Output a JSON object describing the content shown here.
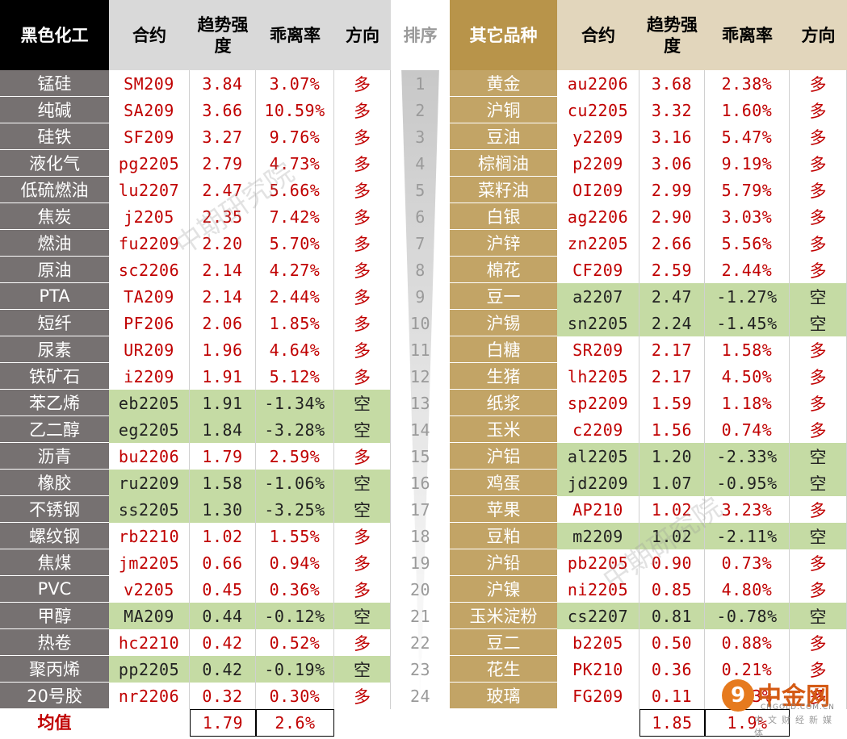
{
  "left_headers": {
    "name": "黑色化工",
    "contract": "合约",
    "strength": "趋势强度",
    "deviation": "乖离率",
    "direction": "方向"
  },
  "rank_header": "排序",
  "right_headers": {
    "name": "其它品种",
    "contract": "合约",
    "strength": "趋势强度",
    "deviation": "乖离率",
    "direction": "方向"
  },
  "left_rows": [
    {
      "name": "锰硅",
      "contract": "SM209",
      "strength": "3.84",
      "deviation": "3.07%",
      "direction": "多"
    },
    {
      "name": "纯碱",
      "contract": "SA209",
      "strength": "3.66",
      "deviation": "10.59%",
      "direction": "多"
    },
    {
      "name": "硅铁",
      "contract": "SF209",
      "strength": "3.27",
      "deviation": "9.76%",
      "direction": "多"
    },
    {
      "name": "液化气",
      "contract": "pg2205",
      "strength": "2.79",
      "deviation": "4.73%",
      "direction": "多"
    },
    {
      "name": "低硫燃油",
      "contract": "lu2207",
      "strength": "2.47",
      "deviation": "5.66%",
      "direction": "多"
    },
    {
      "name": "焦炭",
      "contract": "j2205",
      "strength": "2.35",
      "deviation": "7.42%",
      "direction": "多"
    },
    {
      "name": "燃油",
      "contract": "fu2209",
      "strength": "2.20",
      "deviation": "5.70%",
      "direction": "多"
    },
    {
      "name": "原油",
      "contract": "sc2206",
      "strength": "2.14",
      "deviation": "4.27%",
      "direction": "多"
    },
    {
      "name": "PTA",
      "contract": "TA209",
      "strength": "2.14",
      "deviation": "2.44%",
      "direction": "多"
    },
    {
      "name": "短纤",
      "contract": "PF206",
      "strength": "2.06",
      "deviation": "1.85%",
      "direction": "多"
    },
    {
      "name": "尿素",
      "contract": "UR209",
      "strength": "1.96",
      "deviation": "4.64%",
      "direction": "多"
    },
    {
      "name": "铁矿石",
      "contract": "i2209",
      "strength": "1.91",
      "deviation": "5.12%",
      "direction": "多"
    },
    {
      "name": "苯乙烯",
      "contract": "eb2205",
      "strength": "1.91",
      "deviation": "-1.34%",
      "direction": "空"
    },
    {
      "name": "乙二醇",
      "contract": "eg2205",
      "strength": "1.84",
      "deviation": "-3.28%",
      "direction": "空"
    },
    {
      "name": "沥青",
      "contract": "bu2206",
      "strength": "1.79",
      "deviation": "2.59%",
      "direction": "多"
    },
    {
      "name": "橡胶",
      "contract": "ru2209",
      "strength": "1.58",
      "deviation": "-1.06%",
      "direction": "空"
    },
    {
      "name": "不锈钢",
      "contract": "ss2205",
      "strength": "1.30",
      "deviation": "-3.25%",
      "direction": "空"
    },
    {
      "name": "螺纹钢",
      "contract": "rb2210",
      "strength": "1.02",
      "deviation": "1.55%",
      "direction": "多"
    },
    {
      "name": "焦煤",
      "contract": "jm2205",
      "strength": "0.66",
      "deviation": "0.94%",
      "direction": "多"
    },
    {
      "name": "PVC",
      "contract": "v2205",
      "strength": "0.45",
      "deviation": "0.36%",
      "direction": "多"
    },
    {
      "name": "甲醇",
      "contract": "MA209",
      "strength": "0.44",
      "deviation": "-0.12%",
      "direction": "空"
    },
    {
      "name": "热卷",
      "contract": "hc2210",
      "strength": "0.42",
      "deviation": "0.52%",
      "direction": "多"
    },
    {
      "name": "聚丙烯",
      "contract": "pp2205",
      "strength": "0.42",
      "deviation": "-0.19%",
      "direction": "空"
    },
    {
      "name": "20号胶",
      "contract": "nr2206",
      "strength": "0.32",
      "deviation": "0.30%",
      "direction": "多"
    }
  ],
  "ranks": [
    "1",
    "2",
    "3",
    "4",
    "5",
    "6",
    "7",
    "8",
    "9",
    "10",
    "11",
    "12",
    "13",
    "14",
    "15",
    "16",
    "17",
    "18",
    "19",
    "20",
    "21",
    "22",
    "23",
    "24"
  ],
  "right_rows": [
    {
      "name": "黄金",
      "contract": "au2206",
      "strength": "3.68",
      "deviation": "2.38%",
      "direction": "多"
    },
    {
      "name": "沪铜",
      "contract": "cu2205",
      "strength": "3.32",
      "deviation": "1.60%",
      "direction": "多"
    },
    {
      "name": "豆油",
      "contract": "y2209",
      "strength": "3.16",
      "deviation": "5.47%",
      "direction": "多"
    },
    {
      "name": "棕榈油",
      "contract": "p2209",
      "strength": "3.06",
      "deviation": "9.19%",
      "direction": "多"
    },
    {
      "name": "菜籽油",
      "contract": "OI209",
      "strength": "2.99",
      "deviation": "5.79%",
      "direction": "多"
    },
    {
      "name": "白银",
      "contract": "ag2206",
      "strength": "2.90",
      "deviation": "3.03%",
      "direction": "多"
    },
    {
      "name": "沪锌",
      "contract": "zn2205",
      "strength": "2.66",
      "deviation": "5.56%",
      "direction": "多"
    },
    {
      "name": "棉花",
      "contract": "CF209",
      "strength": "2.59",
      "deviation": "2.44%",
      "direction": "多"
    },
    {
      "name": "豆一",
      "contract": "a2207",
      "strength": "2.47",
      "deviation": "-1.27%",
      "direction": "空"
    },
    {
      "name": "沪锡",
      "contract": "sn2205",
      "strength": "2.24",
      "deviation": "-1.45%",
      "direction": "空"
    },
    {
      "name": "白糖",
      "contract": "SR209",
      "strength": "2.17",
      "deviation": "1.58%",
      "direction": "多"
    },
    {
      "name": "生猪",
      "contract": "lh2205",
      "strength": "2.17",
      "deviation": "4.50%",
      "direction": "多"
    },
    {
      "name": "纸浆",
      "contract": "sp2209",
      "strength": "1.59",
      "deviation": "1.18%",
      "direction": "多"
    },
    {
      "name": "玉米",
      "contract": "c2209",
      "strength": "1.56",
      "deviation": "0.74%",
      "direction": "多"
    },
    {
      "name": "沪铝",
      "contract": "al2205",
      "strength": "1.20",
      "deviation": "-2.33%",
      "direction": "空"
    },
    {
      "name": "鸡蛋",
      "contract": "jd2209",
      "strength": "1.07",
      "deviation": "-0.95%",
      "direction": "空"
    },
    {
      "name": "苹果",
      "contract": "AP210",
      "strength": "1.02",
      "deviation": "3.23%",
      "direction": "多"
    },
    {
      "name": "豆粕",
      "contract": "m2209",
      "strength": "1.02",
      "deviation": "-2.11%",
      "direction": "空"
    },
    {
      "name": "沪铅",
      "contract": "pb2205",
      "strength": "0.90",
      "deviation": "0.73%",
      "direction": "多"
    },
    {
      "name": "沪镍",
      "contract": "ni2205",
      "strength": "0.85",
      "deviation": "4.80%",
      "direction": "多"
    },
    {
      "name": "玉米淀粉",
      "contract": "cs2207",
      "strength": "0.81",
      "deviation": "-0.78%",
      "direction": "空"
    },
    {
      "name": "豆二",
      "contract": "b2205",
      "strength": "0.50",
      "deviation": "0.88%",
      "direction": "多"
    },
    {
      "name": "花生",
      "contract": "PK210",
      "strength": "0.36",
      "deviation": "0.21%",
      "direction": "多"
    },
    {
      "name": "玻璃",
      "contract": "FG209",
      "strength": "0.11",
      "deviation": "0.13%",
      "direction": "多"
    }
  ],
  "average": {
    "label": "均值",
    "left_strength": "1.79",
    "left_deviation": "2.6%",
    "right_strength": "1.85",
    "right_deviation": "1.9%"
  },
  "watermark": "中期研究院",
  "logo": {
    "glyph": "9",
    "name": "中金网",
    "url": "CNGOLD.COM.CN",
    "subtitle": "中文财经新媒体"
  },
  "colors": {
    "left_header_bg": "#000000",
    "left_name_bg": "#767171",
    "right_name_bg": "#c2a466",
    "right_header_name_bg": "#b8944a",
    "right_header_bg": "#e2d6bc",
    "grey_header_bg": "#d9d9d9",
    "short_bg": "#c5dba4",
    "value_red": "#c00000",
    "short_text": "#222222",
    "rank_text": "#9a9a9a"
  }
}
